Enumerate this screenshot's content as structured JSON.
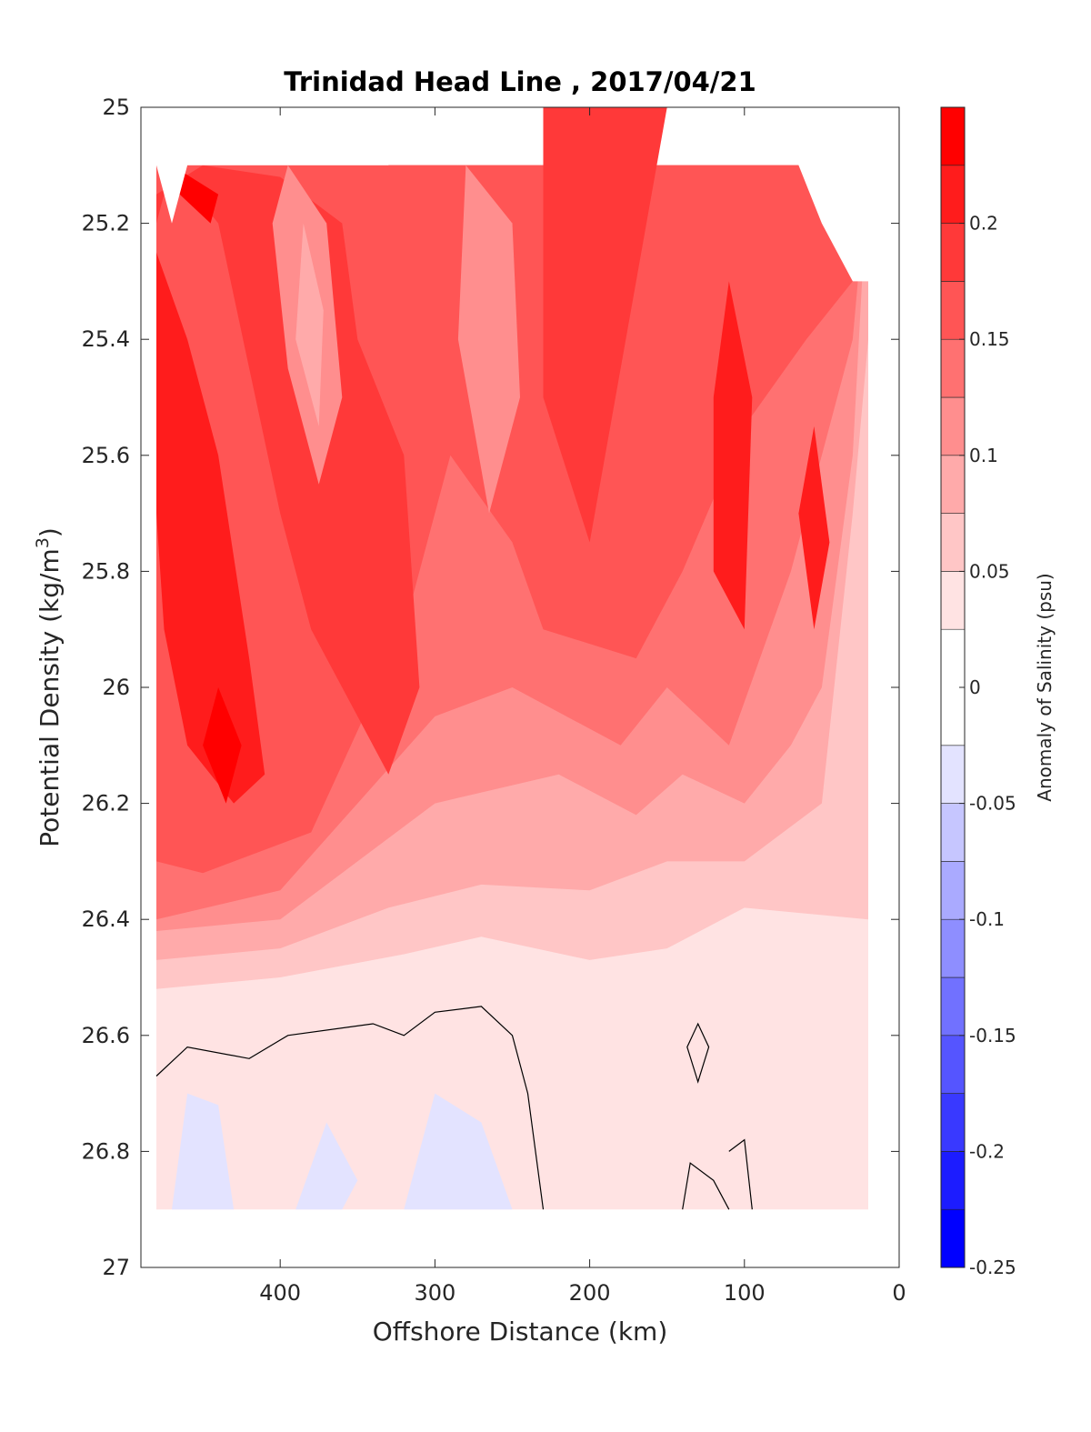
{
  "chart_data": {
    "type": "heatmap",
    "subtype": "filled-contour",
    "title": "Trinidad Head Line , 2017/04/21",
    "xlabel": "Offshore Distance (km)",
    "ylabel_main": "Potential Density (kg/m",
    "ylabel_sup": "3",
    "ylabel_close": ")",
    "colorbar_label": "Anomaly of Salinity (psu)",
    "x_reversed": true,
    "y_reversed": true,
    "xlim": [
      0,
      490
    ],
    "ylim": [
      25,
      27
    ],
    "x_ticks": [
      0,
      100,
      200,
      300,
      400
    ],
    "x_tick_labels": [
      "0",
      "100",
      "200",
      "300",
      "400"
    ],
    "y_ticks": [
      25,
      25.2,
      25.4,
      25.6,
      25.8,
      26,
      26.2,
      26.4,
      26.6,
      26.8,
      27
    ],
    "y_tick_labels": [
      "25",
      "25.2",
      "25.4",
      "25.6",
      "25.8",
      "26",
      "26.2",
      "26.4",
      "26.6",
      "26.8",
      "27"
    ],
    "colorbar_ticks": [
      -0.25,
      -0.2,
      -0.15,
      -0.1,
      -0.05,
      0,
      0.05,
      0.1,
      0.15,
      0.2
    ],
    "colorbar_tick_labels": [
      "-0.25",
      "-0.2",
      "-0.15",
      "-0.1",
      "-0.05",
      "0",
      "0.05",
      "0.1",
      "0.15",
      "0.2"
    ],
    "colorbar_levels": [
      -0.25,
      -0.225,
      -0.2,
      -0.175,
      -0.15,
      -0.125,
      -0.1,
      -0.075,
      -0.05,
      -0.025,
      0.025,
      0.05,
      0.075,
      0.1,
      0.125,
      0.15,
      0.175,
      0.2,
      0.225,
      0.25
    ],
    "colorbar_colors": [
      "#0000ff",
      "#1c1cff",
      "#3939ff",
      "#5555ff",
      "#7171ff",
      "#8e8eff",
      "#aaaaff",
      "#c6c6ff",
      "#e3e3ff",
      "#ffffff",
      "#ffe3e3",
      "#ffc6c6",
      "#ffaaaa",
      "#ff8e8e",
      "#ff7171",
      "#ff5555",
      "#ff3939",
      "#ff1c1c",
      "#ff0000"
    ],
    "grid": false,
    "zero_contour": "black line",
    "contour_regions": [
      {
        "level": 0.025,
        "color": "#ffe3e3",
        "points": [
          [
            480,
            25.1
          ],
          [
            20,
            25.1
          ],
          [
            20,
            26.9
          ],
          [
            480,
            26.9
          ]
        ]
      },
      {
        "level": 0.05,
        "color": "#ffc6c6",
        "points": [
          [
            480,
            25.1
          ],
          [
            20,
            25.1
          ],
          [
            20,
            26.4
          ],
          [
            100,
            26.38
          ],
          [
            150,
            26.45
          ],
          [
            200,
            26.47
          ],
          [
            270,
            26.43
          ],
          [
            320,
            26.46
          ],
          [
            400,
            26.5
          ],
          [
            480,
            26.52
          ]
        ]
      },
      {
        "level": 0.075,
        "color": "#ffaaaa",
        "points": [
          [
            480,
            25.1
          ],
          [
            20,
            25.1
          ],
          [
            20,
            25.4
          ],
          [
            30,
            25.7
          ],
          [
            50,
            26.2
          ],
          [
            100,
            26.3
          ],
          [
            150,
            26.3
          ],
          [
            200,
            26.35
          ],
          [
            270,
            26.34
          ],
          [
            330,
            26.38
          ],
          [
            400,
            26.45
          ],
          [
            480,
            26.47
          ]
        ]
      },
      {
        "level": 0.1,
        "color": "#ff8e8e",
        "points": [
          [
            480,
            25.1
          ],
          [
            20,
            25.1
          ],
          [
            30,
            25.6
          ],
          [
            50,
            26.0
          ],
          [
            70,
            26.1
          ],
          [
            100,
            26.2
          ],
          [
            140,
            26.15
          ],
          [
            170,
            26.22
          ],
          [
            220,
            26.15
          ],
          [
            300,
            26.2
          ],
          [
            350,
            26.3
          ],
          [
            400,
            26.4
          ],
          [
            480,
            26.42
          ]
        ]
      },
      {
        "level": 0.125,
        "color": "#ff7171",
        "points": [
          [
            480,
            25.1
          ],
          [
            20,
            25.1
          ],
          [
            30,
            25.4
          ],
          [
            70,
            25.8
          ],
          [
            110,
            26.1
          ],
          [
            150,
            26.0
          ],
          [
            180,
            26.1
          ],
          [
            250,
            26.0
          ],
          [
            300,
            26.05
          ],
          [
            350,
            26.2
          ],
          [
            400,
            26.35
          ],
          [
            480,
            26.4
          ]
        ]
      },
      {
        "level": 0.15,
        "color": "#ff5555",
        "points": [
          [
            480,
            25.1
          ],
          [
            20,
            25.1
          ],
          [
            30,
            25.3
          ],
          [
            60,
            25.4
          ],
          [
            100,
            25.55
          ],
          [
            140,
            25.8
          ],
          [
            170,
            25.95
          ],
          [
            230,
            25.9
          ],
          [
            250,
            25.75
          ],
          [
            290,
            25.6
          ],
          [
            320,
            25.9
          ],
          [
            380,
            26.25
          ],
          [
            450,
            26.32
          ],
          [
            480,
            26.3
          ]
        ]
      },
      {
        "level": 0.175,
        "color": "#ff3939",
        "points": [
          [
            480,
            25.2
          ],
          [
            470,
            25.1
          ],
          [
            440,
            25.2
          ],
          [
            420,
            25.45
          ],
          [
            400,
            25.7
          ],
          [
            380,
            25.9
          ],
          [
            350,
            26.05
          ],
          [
            330,
            26.15
          ],
          [
            310,
            26.0
          ],
          [
            320,
            25.6
          ],
          [
            350,
            25.4
          ],
          [
            360,
            25.2
          ],
          [
            400,
            25.12
          ],
          [
            450,
            25.1
          ],
          [
            480,
            25.15
          ]
        ]
      },
      {
        "level": 0.175,
        "color": "#ff3939",
        "points": [
          [
            230,
            25.0
          ],
          [
            150,
            25.0
          ],
          [
            170,
            25.3
          ],
          [
            200,
            25.75
          ],
          [
            230,
            25.5
          ]
        ]
      },
      {
        "level": 0.2,
        "color": "#ff1c1c",
        "points": [
          [
            480,
            25.25
          ],
          [
            460,
            25.4
          ],
          [
            440,
            25.6
          ],
          [
            420,
            25.95
          ],
          [
            410,
            26.15
          ],
          [
            430,
            26.2
          ],
          [
            460,
            26.1
          ],
          [
            475,
            25.9
          ],
          [
            480,
            25.7
          ]
        ]
      },
      {
        "level": 0.2,
        "color": "#ff1c1c",
        "points": [
          [
            110,
            25.3
          ],
          [
            95,
            25.5
          ],
          [
            100,
            25.9
          ],
          [
            120,
            25.8
          ],
          [
            120,
            25.5
          ]
        ]
      },
      {
        "level": 0.2,
        "color": "#ff1c1c",
        "points": [
          [
            55,
            25.55
          ],
          [
            45,
            25.75
          ],
          [
            55,
            25.9
          ],
          [
            65,
            25.7
          ]
        ]
      },
      {
        "level": 0.225,
        "color": "#ff0000",
        "points": [
          [
            470,
            25.1
          ],
          [
            440,
            25.15
          ],
          [
            445,
            25.2
          ],
          [
            465,
            25.15
          ]
        ]
      },
      {
        "level": 0.225,
        "color": "#ff0000",
        "points": [
          [
            440,
            26.0
          ],
          [
            425,
            26.1
          ],
          [
            435,
            26.2
          ],
          [
            450,
            26.1
          ]
        ]
      },
      {
        "level": 0.1,
        "color": "#ff8e8e",
        "points": [
          [
            395,
            25.1
          ],
          [
            370,
            25.2
          ],
          [
            360,
            25.5
          ],
          [
            375,
            25.65
          ],
          [
            395,
            25.45
          ],
          [
            405,
            25.2
          ]
        ]
      },
      {
        "level": 0.075,
        "color": "#ffaaaa",
        "points": [
          [
            385,
            25.2
          ],
          [
            372,
            25.35
          ],
          [
            375,
            25.55
          ],
          [
            390,
            25.4
          ]
        ]
      },
      {
        "level": 0.1,
        "color": "#ff8e8e",
        "points": [
          [
            280,
            25.1
          ],
          [
            250,
            25.2
          ],
          [
            245,
            25.5
          ],
          [
            265,
            25.7
          ],
          [
            285,
            25.4
          ]
        ]
      },
      {
        "level": -0.025,
        "color": "#e3e3ff",
        "points": [
          [
            470,
            26.9
          ],
          [
            460,
            26.7
          ],
          [
            440,
            26.72
          ],
          [
            430,
            26.9
          ]
        ]
      },
      {
        "level": -0.025,
        "color": "#e3e3ff",
        "points": [
          [
            390,
            26.9
          ],
          [
            370,
            26.75
          ],
          [
            350,
            26.85
          ],
          [
            360,
            26.9
          ]
        ]
      },
      {
        "level": -0.025,
        "color": "#e3e3ff",
        "points": [
          [
            320,
            26.9
          ],
          [
            300,
            26.7
          ],
          [
            270,
            26.75
          ],
          [
            250,
            26.9
          ]
        ]
      }
    ],
    "zero_contour_lines": [
      {
        "points": [
          [
            480,
            26.67
          ],
          [
            460,
            26.62
          ],
          [
            420,
            26.64
          ],
          [
            395,
            26.6
          ],
          [
            340,
            26.58
          ],
          [
            320,
            26.6
          ],
          [
            300,
            26.56
          ],
          [
            270,
            26.55
          ],
          [
            250,
            26.6
          ],
          [
            240,
            26.7
          ],
          [
            230,
            26.9
          ]
        ]
      },
      {
        "points": [
          [
            130,
            26.58
          ],
          [
            123,
            26.62
          ],
          [
            130,
            26.68
          ],
          [
            137,
            26.62
          ]
        ]
      },
      {
        "points": [
          [
            140,
            26.9
          ],
          [
            135,
            26.82
          ],
          [
            120,
            26.85
          ],
          [
            110,
            26.9
          ]
        ]
      },
      {
        "points": [
          [
            110,
            26.8
          ],
          [
            100,
            26.78
          ],
          [
            95,
            26.9
          ]
        ]
      }
    ],
    "white_gaps": [
      {
        "points": [
          [
            490,
            25.0
          ],
          [
            490,
            25.1
          ],
          [
            480,
            25.1
          ],
          [
            470,
            25.2
          ],
          [
            460,
            25.1
          ],
          [
            330,
            25.1
          ],
          [
            320,
            25.0
          ]
        ]
      },
      {
        "points": [
          [
            295,
            25.0
          ],
          [
            285,
            25.1
          ],
          [
            275,
            25.0
          ]
        ]
      },
      {
        "points": [
          [
            75,
            25.0
          ],
          [
            65,
            25.1
          ],
          [
            50,
            25.2
          ],
          [
            30,
            25.3
          ],
          [
            0,
            25.3
          ],
          [
            0,
            25.0
          ]
        ]
      }
    ]
  }
}
